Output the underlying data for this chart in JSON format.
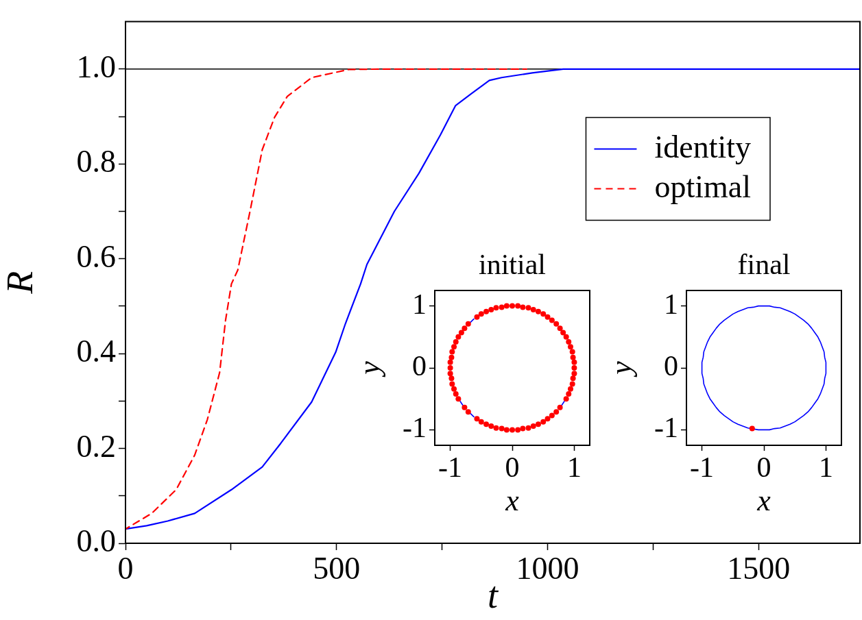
{
  "chart_data": [
    {
      "type": "line",
      "xlabel": "t",
      "ylabel": "R",
      "xlim": [
        0,
        1740
      ],
      "ylim": [
        0,
        1.1
      ],
      "xticks": [
        0,
        {
          "value": 250,
          "label": null
        },
        500,
        {
          "value": 750,
          "label": null
        },
        1000,
        {
          "value": 1250,
          "label": null
        },
        1500
      ],
      "yticks": [
        {
          "value": 0,
          "label": "0.0"
        },
        {
          "value": 0.1,
          "label": null
        },
        0.2,
        {
          "value": 0.3,
          "label": null
        },
        0.4,
        {
          "value": 0.5,
          "label": null
        },
        0.6,
        {
          "value": 0.7,
          "label": null
        },
        0.8,
        {
          "value": 0.9,
          "label": null
        },
        {
          "value": 1,
          "label": "1.0"
        }
      ],
      "grid": false,
      "legend": "top right",
      "ref_lines": [
        {
          "axis": "y",
          "value": 1,
          "color": "#000000"
        }
      ],
      "series": [
        {
          "name": "identity",
          "color": "#0000ff",
          "line_style": "solid",
          "x": [
            0,
            50,
            100,
            164,
            251,
            324,
            368,
            441,
            498,
            521,
            557,
            572,
            637,
            695,
            746,
            782,
            819,
            862,
            891,
            964,
            1037,
            1100,
            1740
          ],
          "values": [
            0.03,
            0.037,
            0.047,
            0.063,
            0.113,
            0.161,
            0.211,
            0.298,
            0.403,
            0.463,
            0.547,
            0.588,
            0.7,
            0.78,
            0.861,
            0.923,
            0.948,
            0.976,
            0.982,
            0.992,
            1.0,
            1.0,
            1.0
          ]
        },
        {
          "name": "optimal",
          "color": "#ff0000",
          "line_style": "dashed",
          "x": [
            0,
            62,
            120,
            164,
            194,
            223,
            237,
            251,
            266,
            295,
            324,
            353,
            383,
            441,
            528,
            600,
            950
          ],
          "values": [
            0.03,
            0.063,
            0.113,
            0.186,
            0.261,
            0.36,
            0.47,
            0.547,
            0.576,
            0.7,
            0.83,
            0.898,
            0.942,
            0.982,
            0.999,
            1.0,
            1.0
          ]
        }
      ]
    },
    {
      "type": "line",
      "title": "initial",
      "xlabel": "x",
      "ylabel": "y",
      "xlim": [
        -1.25,
        1.25
      ],
      "ylim": [
        -1.25,
        1.25
      ],
      "xticks": [
        -1,
        0,
        1
      ],
      "yticks": [
        -1,
        0,
        1
      ],
      "grid": false,
      "series": [
        {
          "type": "line",
          "color": "#0000ff",
          "x": [
            -0.62,
            -0.64,
            -0.67,
            null,
            -0.84,
            -0.82,
            -0.8,
            null,
            -0.67,
            -0.64,
            -0.62,
            null,
            0.8,
            0.82,
            0.84
          ],
          "values": [
            0.79,
            0.77,
            0.74,
            null,
            -0.54,
            -0.57,
            -0.6,
            null,
            -0.74,
            -0.77,
            -0.79,
            null,
            -0.6,
            -0.57,
            -0.54
          ]
        },
        {
          "type": "scatter",
          "marker": "circle",
          "color": "#ff0000",
          "x": [
            1.0,
            1.0,
            0.98,
            0.97,
            0.94,
            0.91,
            0.87,
            0.82,
            0.77,
            0.71,
            0.64,
            0.57,
            0.5,
            0.42,
            0.34,
            0.26,
            0.17,
            0.09,
            0,
            -0.09,
            -0.17,
            -0.26,
            -0.34,
            -0.42,
            -0.5,
            -0.57,
            -0.71,
            -0.77,
            -0.82,
            -0.87,
            -0.91,
            -0.94,
            -0.97,
            -0.98,
            -1.0,
            -1.0,
            -1.0,
            -0.98,
            -0.97,
            -0.94,
            -0.91,
            -0.87,
            -0.77,
            -0.71,
            -0.57,
            -0.5,
            -0.42,
            -0.34,
            -0.26,
            -0.17,
            -0.09,
            0,
            0.09,
            0.17,
            0.26,
            0.34,
            0.42,
            0.5,
            0.57,
            0.64,
            0.71,
            0.77,
            0.87,
            0.91,
            0.94,
            0.97,
            0.98,
            1.0
          ],
          "values": [
            0,
            0.09,
            0.17,
            0.26,
            0.34,
            0.42,
            0.5,
            0.57,
            0.64,
            0.71,
            0.77,
            0.82,
            0.87,
            0.91,
            0.94,
            0.97,
            0.98,
            1.0,
            1.0,
            1.0,
            0.98,
            0.97,
            0.94,
            0.91,
            0.87,
            0.82,
            0.71,
            0.64,
            0.57,
            0.5,
            0.42,
            0.34,
            0.26,
            0.17,
            0.09,
            0,
            -0.09,
            -0.17,
            -0.26,
            -0.34,
            -0.42,
            -0.5,
            -0.64,
            -0.71,
            -0.82,
            -0.87,
            -0.91,
            -0.94,
            -0.97,
            -0.98,
            -1.0,
            -1.0,
            -1.0,
            -0.98,
            -0.97,
            -0.94,
            -0.91,
            -0.87,
            -0.82,
            -0.77,
            -0.71,
            -0.64,
            -0.5,
            -0.42,
            -0.34,
            -0.26,
            -0.17,
            -0.09
          ]
        }
      ]
    },
    {
      "type": "line",
      "title": "final",
      "xlabel": "x",
      "ylabel": "y",
      "xlim": [
        -1.25,
        1.25
      ],
      "ylim": [
        -1.25,
        1.25
      ],
      "xticks": [
        -1,
        0,
        1
      ],
      "yticks": [
        -1,
        0,
        1
      ],
      "grid": false,
      "series": [
        {
          "type": "line",
          "color": "#0000ff",
          "x": [
            -1.0,
            -1.0,
            -0.98,
            -0.97,
            -0.94,
            -0.91,
            -0.87,
            -0.82,
            -0.77,
            -0.71,
            -0.64,
            -0.57,
            -0.5,
            -0.42,
            -0.34,
            -0.26,
            -0.17,
            -0.09,
            0,
            0.09,
            0.17,
            0.26,
            0.34,
            0.42,
            0.5,
            0.57,
            0.64,
            0.71,
            0.77,
            0.82,
            0.87,
            0.91,
            0.94,
            0.97,
            0.98,
            1.0,
            1.0,
            null,
            -1.0,
            -1.0,
            -0.98,
            -0.97,
            -0.94,
            -0.91,
            -0.87,
            -0.82,
            -0.77,
            -0.71,
            -0.64,
            -0.57,
            -0.5,
            -0.42,
            -0.34,
            -0.26,
            -0.09,
            0,
            0.09,
            0.17,
            0.26,
            0.34,
            0.42,
            0.5,
            0.57,
            0.64,
            0.71,
            0.77,
            0.82,
            0.87,
            0.91,
            0.94,
            0.97,
            0.98,
            1.0,
            1.0
          ],
          "values": [
            0,
            0.09,
            0.17,
            0.26,
            0.34,
            0.42,
            0.5,
            0.57,
            0.64,
            0.71,
            0.77,
            0.82,
            0.87,
            0.91,
            0.94,
            0.97,
            0.98,
            1.0,
            1.0,
            1.0,
            0.98,
            0.97,
            0.94,
            0.91,
            0.87,
            0.82,
            0.77,
            0.71,
            0.64,
            0.57,
            0.5,
            0.42,
            0.34,
            0.26,
            0.17,
            0.09,
            0,
            null,
            0,
            -0.09,
            -0.17,
            -0.26,
            -0.34,
            -0.42,
            -0.5,
            -0.57,
            -0.64,
            -0.71,
            -0.77,
            -0.82,
            -0.87,
            -0.91,
            -0.94,
            -0.97,
            -1.0,
            -1.0,
            -1.0,
            -0.98,
            -0.97,
            -0.94,
            -0.91,
            -0.87,
            -0.82,
            -0.77,
            -0.71,
            -0.64,
            -0.57,
            -0.5,
            -0.42,
            -0.34,
            -0.26,
            -0.17,
            -0.09,
            0
          ]
        },
        {
          "type": "scatter",
          "marker": "circle",
          "color": "#ff0000",
          "x": [
            -0.19
          ],
          "values": [
            -0.98
          ]
        }
      ]
    }
  ]
}
